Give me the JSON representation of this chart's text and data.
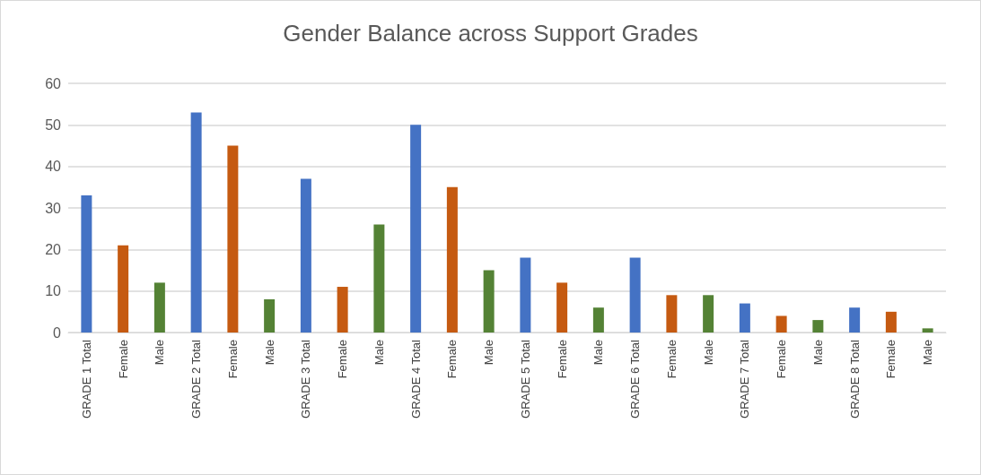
{
  "chart_data": {
    "type": "bar",
    "title": "Gender Balance across Support Grades",
    "categories": [
      "GRADE 1 Total",
      "Female",
      "Male",
      "GRADE 2 Total",
      "Female",
      "Male",
      "GRADE 3 Total",
      "Female",
      "Male",
      "GRADE 4 Total",
      "Female",
      "Male",
      "GRADE 5 Total",
      "Female",
      "Male",
      "GRADE 6 Total",
      "Female",
      "Male",
      "GRADE 7 Total",
      "Female",
      "Male",
      "GRADE 8 Total",
      "Female",
      "Male"
    ],
    "values": [
      33,
      21,
      12,
      53,
      45,
      8,
      37,
      11,
      26,
      50,
      35,
      15,
      18,
      12,
      6,
      18,
      9,
      9,
      7,
      4,
      3,
      6,
      5,
      1
    ],
    "colors": [
      "#4472c4",
      "#c55a11",
      "#548235",
      "#4472c4",
      "#c55a11",
      "#548235",
      "#4472c4",
      "#c55a11",
      "#548235",
      "#4472c4",
      "#c55a11",
      "#548235",
      "#4472c4",
      "#c55a11",
      "#548235",
      "#4472c4",
      "#c55a11",
      "#548235",
      "#4472c4",
      "#c55a11",
      "#548235",
      "#4472c4",
      "#c55a11",
      "#548235"
    ],
    "ylim": [
      0,
      60
    ],
    "yticks": [
      0,
      10,
      20,
      30,
      40,
      50,
      60
    ],
    "grid": "y"
  }
}
